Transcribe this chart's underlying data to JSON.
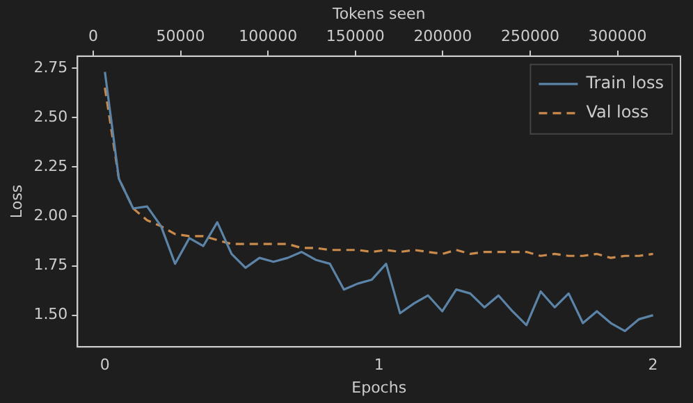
{
  "chart_data": {
    "type": "line",
    "xlabel": "Epochs",
    "ylabel": "Loss",
    "x2label": "Tokens seen",
    "x": [
      0,
      0.051,
      0.103,
      0.154,
      0.205,
      0.256,
      0.308,
      0.359,
      0.41,
      0.462,
      0.513,
      0.564,
      0.615,
      0.667,
      0.718,
      0.769,
      0.821,
      0.872,
      0.923,
      0.974,
      1.026,
      1.077,
      1.128,
      1.179,
      1.231,
      1.282,
      1.333,
      1.385,
      1.436,
      1.487,
      1.538,
      1.59,
      1.641,
      1.692,
      1.744,
      1.795,
      1.846,
      1.897,
      1.949,
      2
    ],
    "series": [
      {
        "name": "Train loss",
        "color": "#5b84a8",
        "line_style": "solid",
        "values": [
          2.73,
          2.19,
          2.04,
          2.05,
          1.95,
          1.76,
          1.89,
          1.85,
          1.97,
          1.81,
          1.74,
          1.79,
          1.77,
          1.79,
          1.82,
          1.78,
          1.76,
          1.63,
          1.66,
          1.68,
          1.76,
          1.51,
          1.56,
          1.6,
          1.52,
          1.63,
          1.61,
          1.54,
          1.6,
          1.52,
          1.45,
          1.62,
          1.54,
          1.61,
          1.46,
          1.52,
          1.46,
          1.42,
          1.48,
          1.5
        ]
      },
      {
        "name": "Val loss",
        "color": "#c98a4b",
        "line_style": "dashed",
        "values": [
          2.65,
          2.19,
          2.04,
          1.98,
          1.95,
          1.91,
          1.9,
          1.9,
          1.88,
          1.86,
          1.86,
          1.86,
          1.86,
          1.86,
          1.84,
          1.84,
          1.83,
          1.83,
          1.83,
          1.82,
          1.83,
          1.82,
          1.83,
          1.82,
          1.81,
          1.83,
          1.81,
          1.82,
          1.82,
          1.82,
          1.82,
          1.8,
          1.81,
          1.8,
          1.8,
          1.81,
          1.79,
          1.8,
          1.8,
          1.81
        ]
      }
    ],
    "xlim": [
      -0.1,
      2.1
    ],
    "xticks": [
      0,
      1,
      2
    ],
    "ylim": [
      1.34,
      2.81
    ],
    "yticks": [
      {
        "value": 1.5,
        "label": "1.50"
      },
      {
        "value": 1.75,
        "label": "1.75"
      },
      {
        "value": 2,
        "label": "2.00"
      },
      {
        "value": 2.25,
        "label": "2.25"
      },
      {
        "value": 2.5,
        "label": "2.50"
      },
      {
        "value": 2.75,
        "label": "2.75"
      }
    ],
    "x2lim": [
      -9000,
      336000
    ],
    "x2ticks": [
      0,
      50000,
      100000,
      150000,
      200000,
      250000,
      300000
    ],
    "marker": "none",
    "grid": false,
    "legend": "top right"
  }
}
